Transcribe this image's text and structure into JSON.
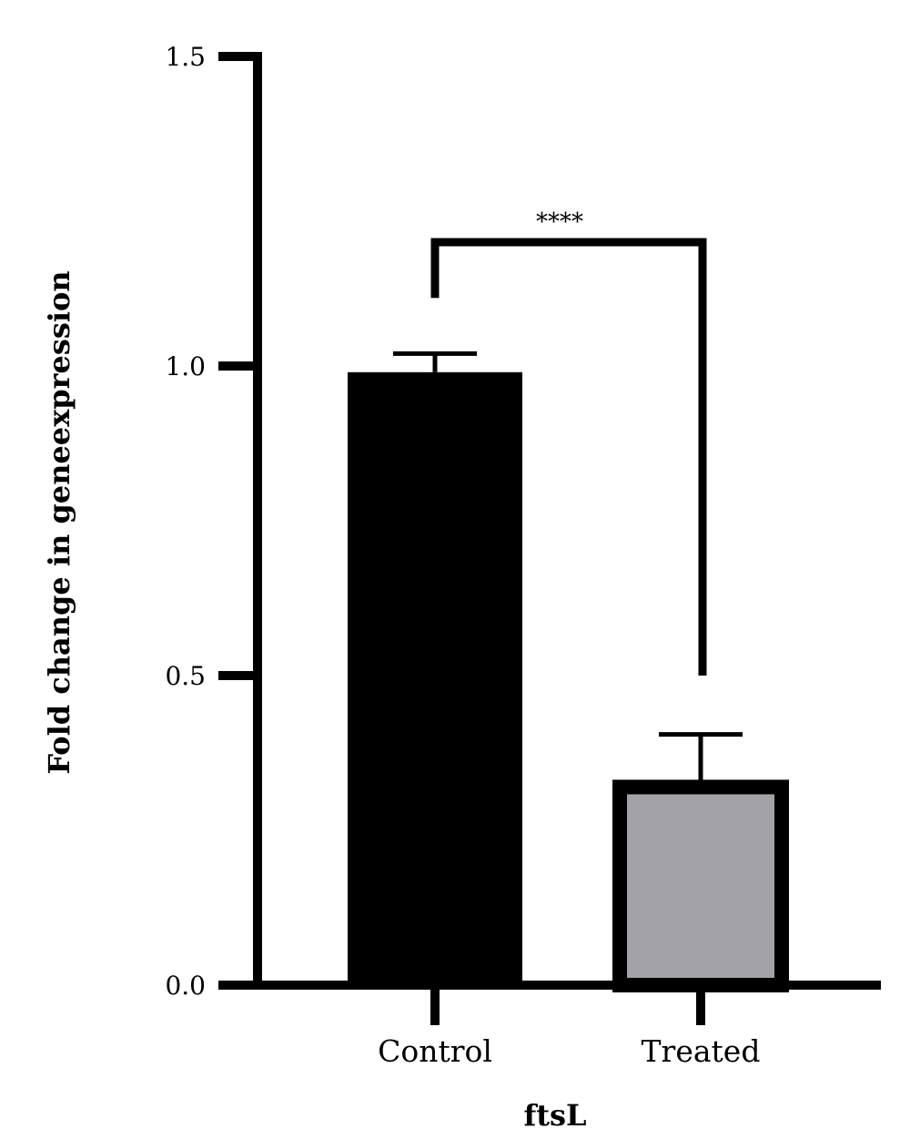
{
  "chart_data": {
    "type": "bar",
    "categories": [
      "Control",
      "Treated"
    ],
    "values": [
      0.99,
      0.32
    ],
    "error_upper": [
      1.02,
      0.405
    ],
    "ylabel": "Fold change in geneexpression",
    "xlabel": "ftsL",
    "ylim": [
      0,
      1.5
    ],
    "yticks": [
      "0.0",
      "0.5",
      "1.0",
      "1.5"
    ],
    "ytick_values": [
      0,
      0.5,
      1.0,
      1.5
    ],
    "grid": false,
    "significance": {
      "label": "****",
      "between": [
        "Control",
        "Treated"
      ],
      "bracket_level": 1.2,
      "left_drop": 1.11,
      "right_drop": 0.5
    },
    "colors": {
      "Control": "#000000",
      "Treated": "#a3a2a8",
      "outline": "#000000"
    }
  }
}
